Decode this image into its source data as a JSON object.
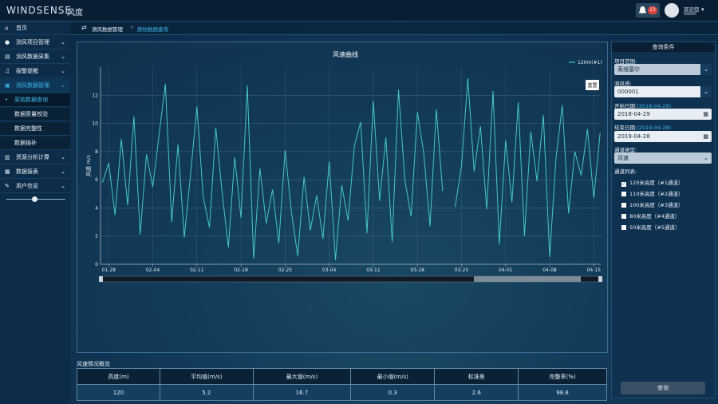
{
  "header": {
    "logo": "WINDSENSE",
    "logo_cn": "风度",
    "badge": 23,
    "welcome": "欢迎您"
  },
  "sidebar": {
    "menu": [
      "首页",
      "测风项目管理",
      "测风数据采集",
      "报警提醒",
      "测风数据管理"
    ],
    "submenu": [
      "原始数据查询",
      "数据质量校验",
      "数据完整性",
      "数据插补"
    ],
    "menu_after": [
      "资源分析计算",
      "数据报表",
      "用户信息"
    ]
  },
  "breadcrumb": [
    "测风数据管理",
    "原始数据查询"
  ],
  "chart_data": {
    "type": "line",
    "title": "风速曲线",
    "y_label": "风速 m/s",
    "reset_button": "重置",
    "x": [
      -1,
      0,
      1,
      2,
      3,
      4,
      5,
      6,
      7,
      8,
      9,
      10,
      11,
      12,
      13,
      14,
      15,
      16,
      17,
      18,
      19,
      20,
      21,
      22,
      23,
      24,
      25,
      26,
      27,
      28,
      29,
      30,
      31,
      32,
      33,
      34,
      35,
      36,
      37,
      38,
      39,
      40,
      41,
      42,
      43,
      44,
      45,
      46,
      47,
      48,
      49,
      50,
      51,
      52,
      53,
      54,
      55,
      56,
      57,
      58,
      59,
      60,
      61,
      62,
      63,
      64,
      65,
      66,
      67,
      68,
      69,
      70,
      71,
      72,
      73,
      74,
      75,
      76,
      77,
      78
    ],
    "series": [
      {
        "name": "120m(#1)",
        "color": "#45c8c4",
        "values": [
          5.8,
          7.2,
          3.5,
          8.9,
          4.2,
          10.5,
          2.1,
          7.8,
          5.5,
          9.2,
          12.8,
          3.0,
          8.5,
          1.9,
          6.4,
          11.2,
          4.8,
          2.6,
          9.7,
          5.1,
          1.2,
          7.6,
          3.3,
          12.7,
          0.4,
          6.8,
          2.9,
          5.3,
          1.5,
          8.1,
          3.7,
          0.6,
          6.2,
          2.4,
          4.9,
          1.8,
          7.3,
          0.3,
          5.6,
          3.1,
          8.4,
          10.1,
          2.2,
          11.6,
          4.5,
          9.0,
          1.6,
          12.4,
          6.0,
          3.4,
          10.8,
          7.9,
          2.7,
          11.0,
          5.2,
          null,
          4.1,
          7.0,
          13.2,
          6.6,
          9.8,
          3.9,
          12.3,
          1.4,
          8.8,
          4.4,
          11.5,
          2.0,
          9.4,
          5.9,
          10.6,
          0.5,
          7.5,
          11.3,
          3.6,
          8.0,
          6.3,
          9.6,
          4.7,
          9.3
        ]
      }
    ],
    "xlim": [
      -1.3,
      78.1
    ],
    "xticks": [
      {
        "value": 0,
        "label": "01-28"
      },
      {
        "value": 7,
        "label": "02-04"
      },
      {
        "value": 14,
        "label": "02-11"
      },
      {
        "value": 21,
        "label": "02-18"
      },
      {
        "value": 28,
        "label": "02-25"
      },
      {
        "value": 35,
        "label": "03-04"
      },
      {
        "value": 42,
        "label": "03-11"
      },
      {
        "value": 49,
        "label": "03-18"
      },
      {
        "value": 56,
        "label": "03-25"
      },
      {
        "value": 63,
        "label": "04-01"
      },
      {
        "value": 70,
        "label": "04-08"
      },
      {
        "value": 77,
        "label": "04-15"
      }
    ],
    "ylim": [
      0,
      14
    ],
    "yticks": [
      0,
      2,
      4,
      6,
      8,
      10,
      12
    ],
    "grid": true,
    "legend": "top-right"
  },
  "query": {
    "title": "查询条件",
    "project_label": "项目范围:",
    "project": "莱维塞尔",
    "tower_label": "测风塔:",
    "tower": "000001",
    "start_label": "开始日期:",
    "start_hint": "(2018-04-29)",
    "start": "2018-04-29",
    "end_label": "结束日期:",
    "end_hint": "(2019-04-28)",
    "end": "2019-04-28",
    "type_label": "通道类型:",
    "type": "风速",
    "channels_label": "通道列表:",
    "channels": [
      "120米高度（#1通道）",
      "110米高度（#2通道）",
      "100米高度（#3通道）",
      "80米高度（#4通道）",
      "50米高度（#5通道）"
    ],
    "button": "查询"
  },
  "summary": {
    "title": "风速情况概览",
    "columns": [
      "高度(m)",
      "平均值(m/s)",
      "最大值(m/s)",
      "最小值(m/s)",
      "标准差",
      "完整率(%)"
    ],
    "rows": [
      [
        120,
        5.2,
        16.7,
        0.3,
        2.6,
        98.8
      ]
    ]
  }
}
